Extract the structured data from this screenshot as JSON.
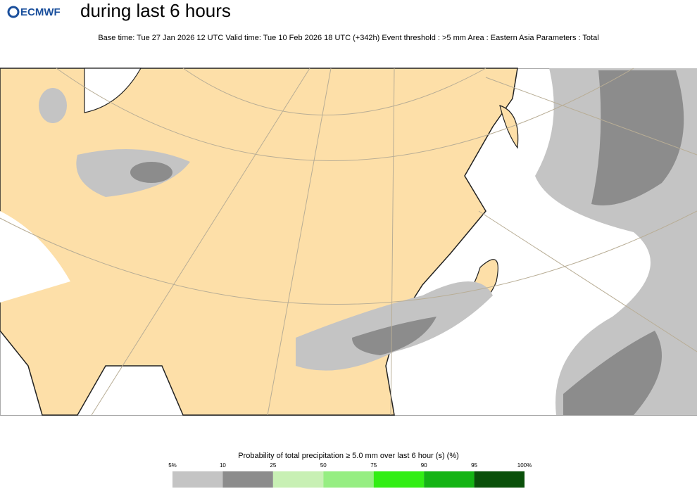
{
  "header": {
    "logo": "ECMWF",
    "title": "during last 6 hours",
    "subtitle": "Base time: Tue 27 Jan 2026 12 UTC Valid time: Tue 10 Feb 2026 18 UTC (+342h) Event threshold : >5 mm Area : Eastern Asia Parameters : Total"
  },
  "legend": {
    "title": "Probability of total precipitation ≥ 5.0 mm over last 6 hour (s) (%)",
    "ticks": [
      "5%",
      "10",
      "25",
      "50",
      "75",
      "90",
      "95",
      "100%"
    ],
    "colors": [
      "#c4c4c4",
      "#8c8c8c",
      "#c8f0b4",
      "#96ee82",
      "#32ee14",
      "#14b414",
      "#0a500a"
    ]
  }
}
